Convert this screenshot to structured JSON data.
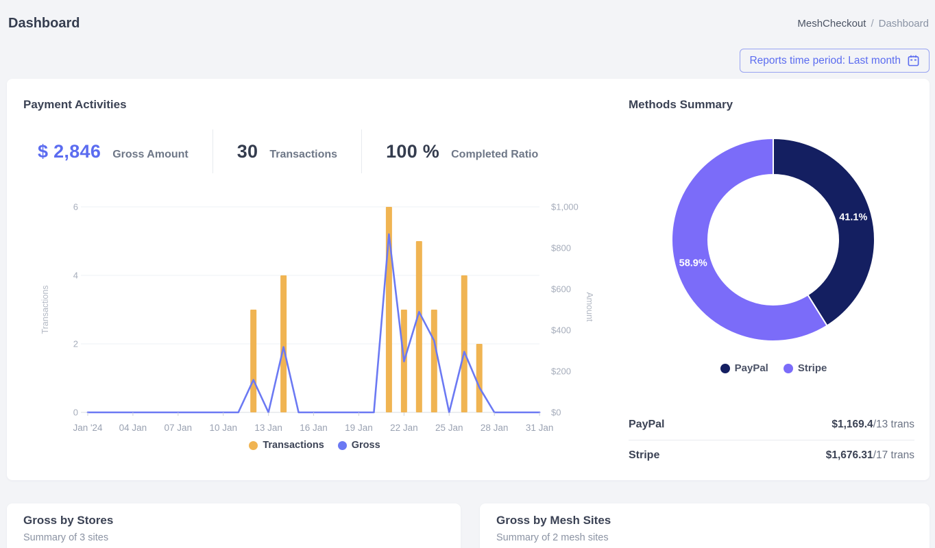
{
  "header": {
    "title": "Dashboard",
    "breadcrumb_app": "MeshCheckout",
    "breadcrumb_separator": "/",
    "breadcrumb_page": "Dashboard"
  },
  "toolbar": {
    "period_label": "Reports time period: Last month",
    "icon": "calendar-icon"
  },
  "payment_activities": {
    "title": "Payment Activities",
    "stats": [
      {
        "value": "$ 2,846",
        "label": "Gross Amount"
      },
      {
        "value": "30",
        "label": "Transactions"
      },
      {
        "value": "100 %",
        "label": "Completed Ratio"
      }
    ]
  },
  "methods_summary": {
    "title": "Methods Summary",
    "rows": [
      {
        "name": "PayPal",
        "amount": "$1,169.4",
        "trans": "/13 trans"
      },
      {
        "name": "Stripe",
        "amount": "$1,676.31",
        "trans": "/17 trans"
      }
    ]
  },
  "bottom_cards": [
    {
      "title": "Gross by Stores",
      "subtitle": "Summary of 3 sites"
    },
    {
      "title": "Gross by Mesh Sites",
      "subtitle": "Summary of 2 mesh sites"
    }
  ],
  "colors": {
    "accent": "#5b6cf0",
    "bar": "#f0b452",
    "line": "#6b79f3",
    "paypal": "#141f61",
    "stripe": "#7b6cf9",
    "axis_text": "#a6adbb",
    "x_text": "#9aa2b2",
    "grid": "#eef0f4",
    "baseline": "#d8dce2"
  },
  "chart_data": [
    {
      "type": "bar",
      "subtype": "combo-bar-line",
      "title": "Payment Activities",
      "x": [
        1,
        2,
        3,
        4,
        5,
        6,
        7,
        8,
        9,
        10,
        11,
        12,
        13,
        14,
        15,
        16,
        17,
        18,
        19,
        20,
        21,
        22,
        23,
        24,
        25,
        26,
        27,
        28,
        29,
        30,
        31
      ],
      "x_labels": [
        "Jan '24",
        "04 Jan",
        "07 Jan",
        "10 Jan",
        "13 Jan",
        "16 Jan",
        "19 Jan",
        "22 Jan",
        "25 Jan",
        "28 Jan",
        "31 Jan"
      ],
      "series": [
        {
          "name": "Transactions",
          "type": "bar",
          "axis": "left",
          "values": [
            0,
            0,
            0,
            0,
            0,
            0,
            0,
            0,
            0,
            0,
            0,
            3,
            0,
            4,
            0,
            0,
            0,
            0,
            0,
            0,
            6,
            3,
            5,
            3,
            0,
            4,
            2,
            0,
            0,
            0,
            0
          ]
        },
        {
          "name": "Gross",
          "type": "line",
          "axis": "right",
          "values": [
            0,
            0,
            0,
            0,
            0,
            0,
            0,
            0,
            0,
            0,
            0,
            158,
            0,
            318,
            0,
            0,
            0,
            0,
            0,
            0,
            867,
            248,
            489,
            349,
            0,
            295,
            122,
            0,
            0,
            0,
            0
          ]
        }
      ],
      "left_axis": {
        "label": "Transactions",
        "ticks": [
          0,
          2,
          4,
          6
        ],
        "range": [
          0,
          6
        ],
        "grid": true
      },
      "right_axis": {
        "label": "Amount",
        "ticks": [
          "$0",
          "$200",
          "$400",
          "$600",
          "$800",
          "$1,000"
        ],
        "range": [
          0,
          1000
        ],
        "grid": false
      },
      "legend_position": "bottom"
    },
    {
      "type": "pie",
      "subtype": "donut",
      "title": "Methods Summary",
      "slices": [
        {
          "label": "PayPal",
          "pct": 41.1,
          "display": "41.1%"
        },
        {
          "label": "Stripe",
          "pct": 58.9,
          "display": "58.9%"
        }
      ],
      "legend_position": "bottom"
    }
  ]
}
